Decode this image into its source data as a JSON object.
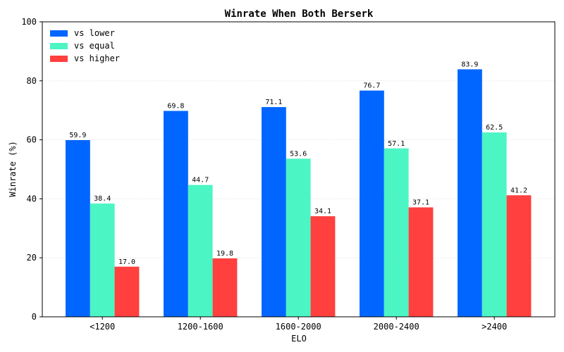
{
  "chart_data": {
    "type": "bar",
    "title": "Winrate When Both Berserk",
    "xlabel": "ELO",
    "ylabel": "Winrate (%)",
    "categories": [
      "<1200",
      "1200-1600",
      "1600-2000",
      "2000-2400",
      ">2400"
    ],
    "series": [
      {
        "name": "vs lower",
        "color": "#0066ff",
        "values": [
          59.9,
          69.8,
          71.1,
          76.7,
          83.9
        ]
      },
      {
        "name": "vs equal",
        "color": "#4cf5c4",
        "values": [
          38.4,
          44.7,
          53.6,
          57.1,
          62.5
        ]
      },
      {
        "name": "vs higher",
        "color": "#ff403e",
        "values": [
          17.0,
          19.8,
          34.1,
          37.1,
          41.2
        ]
      }
    ],
    "ylim": [
      0,
      100
    ],
    "yticks": [
      0,
      20,
      40,
      60,
      80,
      100
    ],
    "grid": "horizontal, light",
    "legend": "top-left"
  }
}
